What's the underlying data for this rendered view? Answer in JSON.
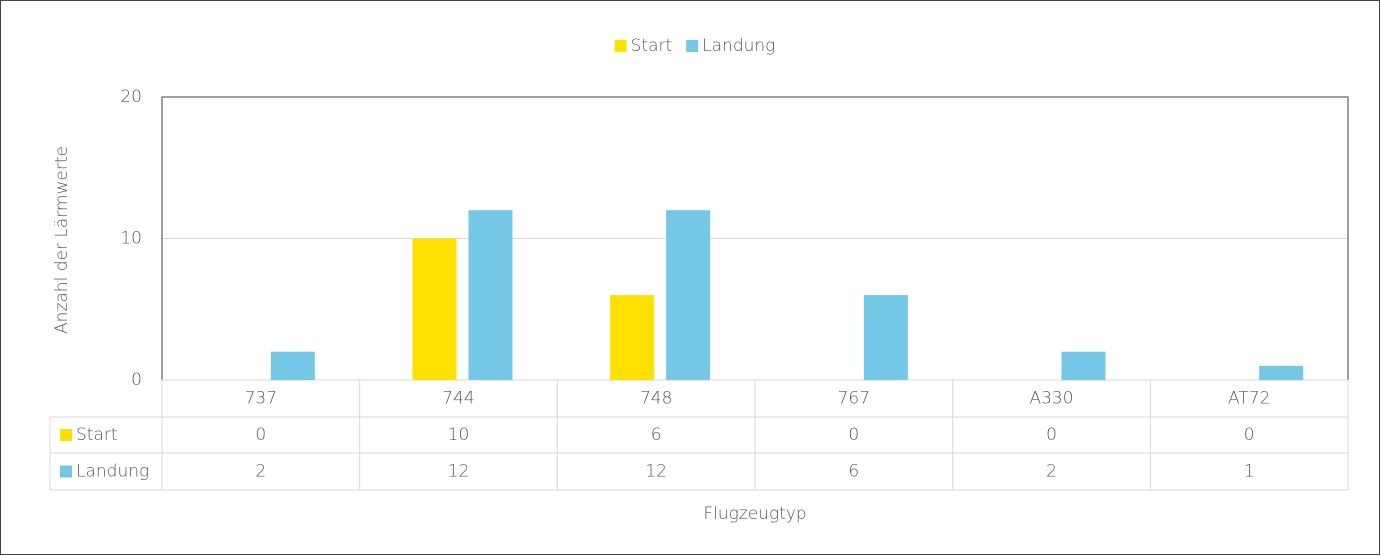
{
  "chart_data": {
    "type": "bar",
    "categories": [
      "737",
      "744",
      "748",
      "767",
      "A330",
      "AT72"
    ],
    "series": [
      {
        "name": "Start",
        "color": "#ffe000",
        "values": [
          0,
          10,
          6,
          0,
          0,
          0
        ]
      },
      {
        "name": "Landung",
        "color": "#75c8e5",
        "values": [
          2,
          12,
          12,
          6,
          2,
          1
        ]
      }
    ],
    "ylim": [
      0,
      20
    ],
    "yticks": [
      0,
      10,
      20
    ],
    "grid": true,
    "ylabel": "Anzahl der Lärmwerte",
    "xlabel": "Flugzeugtyp",
    "legend": "top"
  }
}
